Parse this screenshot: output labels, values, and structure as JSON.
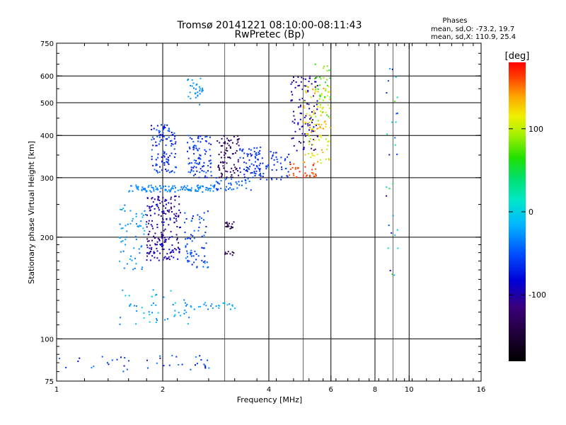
{
  "chart_data": {
    "type": "scatter",
    "title": "Tromsø 20141221 08:10:00-08:11:43",
    "subtitle": "RwPretec (Bp)",
    "xlabel": "Frequency [MHz]",
    "ylabel": "Stationary phase Virtual Height [km]",
    "x_scale": "log",
    "y_scale": "log",
    "xlim": [
      1,
      16
    ],
    "ylim": [
      75,
      750
    ],
    "x_ticks": [
      1,
      2,
      4,
      6,
      8,
      10,
      16
    ],
    "x_tick_labels": [
      "1",
      "2",
      "4",
      "6",
      "8",
      "10",
      "16"
    ],
    "y_ticks": [
      75,
      100,
      200,
      300,
      400,
      500,
      600,
      750
    ],
    "y_tick_labels": [
      "75",
      "100",
      "200",
      "300",
      "400",
      "500",
      "600",
      "750"
    ],
    "grid": true,
    "phase_box": {
      "title": "Phases",
      "line_o": "mean, sd,O: -73.2, 19.7",
      "line_x": "mean, sd,X: 110.9, 25.4"
    },
    "colorbar": {
      "label": "[deg]",
      "range": [
        -180,
        180
      ],
      "ticks": [
        100,
        0,
        -100
      ],
      "tick_labels": [
        "100",
        "0",
        "-100"
      ],
      "colormap": "rainbow (black-purple-blue-cyan-green-yellow-red)"
    },
    "clusters": [
      {
        "f": [
          1.6,
          2.8
        ],
        "h": [
          272,
          285
        ],
        "ph": [
          -40,
          -25
        ],
        "n": 110
      },
      {
        "f": [
          2.8,
          3.6
        ],
        "h": [
          275,
          300
        ],
        "ph": [
          -60,
          -35
        ],
        "n": 40
      },
      {
        "f": [
          3.6,
          4.6
        ],
        "h": [
          290,
          360
        ],
        "ph": [
          -75,
          -55
        ],
        "n": 55
      },
      {
        "f": [
          4.6,
          5.5
        ],
        "h": [
          360,
          600
        ],
        "ph": [
          -115,
          -85
        ],
        "n": 100
      },
      {
        "f": [
          4.5,
          5.5
        ],
        "h": [
          300,
          330
        ],
        "ph": [
          150,
          175
        ],
        "n": 35
      },
      {
        "f": [
          5.0,
          6.0
        ],
        "h": [
          330,
          560
        ],
        "ph": [
          90,
          150
        ],
        "n": 110
      },
      {
        "f": [
          5.4,
          6.0
        ],
        "h": [
          450,
          650
        ],
        "ph": [
          50,
          95
        ],
        "n": 30
      },
      {
        "f": [
          1.85,
          2.2
        ],
        "h": [
          310,
          430
        ],
        "ph": [
          -90,
          -40
        ],
        "n": 110
      },
      {
        "f": [
          2.35,
          2.75
        ],
        "h": [
          300,
          400
        ],
        "ph": [
          -80,
          -40
        ],
        "n": 90
      },
      {
        "f": [
          2.85,
          3.3
        ],
        "h": [
          300,
          400
        ],
        "ph": [
          -150,
          -110
        ],
        "n": 80
      },
      {
        "f": [
          3.3,
          3.8
        ],
        "h": [
          300,
          370
        ],
        "ph": [
          -80,
          -50
        ],
        "n": 60
      },
      {
        "f": [
          1.8,
          2.25
        ],
        "h": [
          170,
          265
        ],
        "ph": [
          -120,
          -80
        ],
        "n": 200
      },
      {
        "f": [
          1.5,
          1.8
        ],
        "h": [
          160,
          250
        ],
        "ph": [
          -40,
          -10
        ],
        "n": 60
      },
      {
        "f": [
          2.3,
          2.7
        ],
        "h": [
          160,
          240
        ],
        "ph": [
          -80,
          -30
        ],
        "n": 70
      },
      {
        "f": [
          3.0,
          3.2
        ],
        "h": [
          210,
          222
        ],
        "ph": [
          -150,
          -120
        ],
        "n": 15
      },
      {
        "f": [
          3.0,
          3.2
        ],
        "h": [
          175,
          182
        ],
        "ph": [
          -150,
          -120
        ],
        "n": 10
      },
      {
        "f": [
          1.5,
          2.4
        ],
        "h": [
          110,
          140
        ],
        "ph": [
          -40,
          0
        ],
        "n": 50
      },
      {
        "f": [
          2.4,
          3.3
        ],
        "h": [
          122,
          128
        ],
        "ph": [
          -40,
          0
        ],
        "n": 25
      },
      {
        "f": [
          1.0,
          2.8
        ],
        "h": [
          80,
          90
        ],
        "ph": [
          -90,
          -20
        ],
        "n": 40
      },
      {
        "f": [
          2.35,
          2.6
        ],
        "h": [
          490,
          590
        ],
        "ph": [
          -40,
          -20
        ],
        "n": 30
      },
      {
        "f": [
          8.6,
          9.3
        ],
        "h": [
          150,
          640
        ],
        "ph": [
          -100,
          80
        ],
        "n": 30
      }
    ]
  }
}
